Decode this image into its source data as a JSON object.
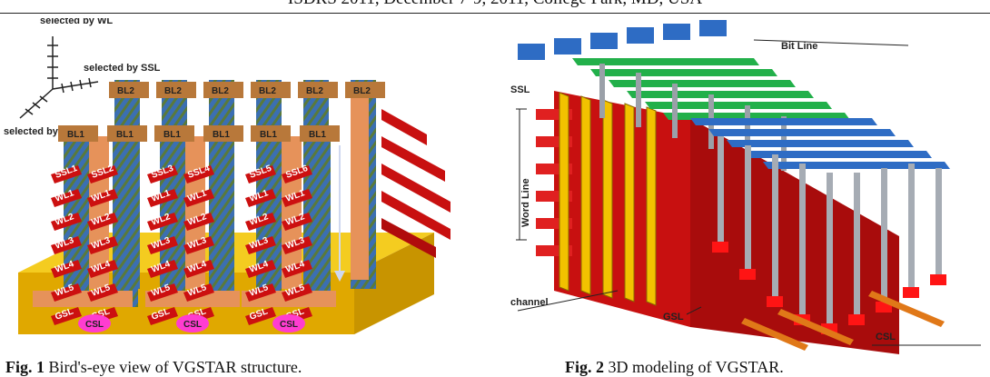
{
  "header": {
    "text": "ISDRS 2011, December 7-9, 2011, College Park, MD, USA"
  },
  "fig1": {
    "axis_labels": {
      "wl": "selected by WL",
      "ssl": "selected by SSL",
      "bl": "selected by BL"
    },
    "bl1": "BL1",
    "bl2": "BL2",
    "ssl_labels": [
      "SSL1",
      "SSL2",
      "SSL3",
      "SSL4",
      "SSL5",
      "SSL6"
    ],
    "wl_labels": [
      "WL1",
      "WL2",
      "WL3",
      "WL4",
      "WL5"
    ],
    "gsl": "GSL",
    "csl": "CSL",
    "caption": {
      "lead": "Fig. 1",
      "text": " Bird's-eye view of VGSTAR structure."
    }
  },
  "fig2": {
    "labels": {
      "bitline": "Bit Line",
      "ssl": "SSL",
      "wordline": "Word Line",
      "channel": "channel",
      "gsl": "GSL",
      "csl": "CSL"
    },
    "caption": {
      "lead": "Fig. 2",
      "text": " 3D modeling of VGSTAR."
    }
  },
  "colors": {
    "red": "#cc1010",
    "gold": "#f2c200",
    "blue": "#3c78c8",
    "green": "#22b04a",
    "orange": "#f0a060",
    "magenta": "#ff3cd0"
  }
}
